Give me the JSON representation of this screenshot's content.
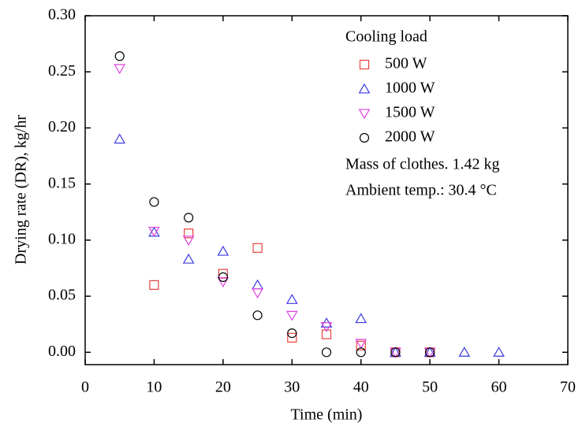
{
  "chart_data": {
    "type": "scatter",
    "x_label": "Time (min)",
    "y_label": "Drying rate (DR), kg/hr",
    "legend_title": "Cooling load",
    "annotations": [
      "Mass of clothes. 1.42 kg",
      "Ambient temp.: 30.4 °C"
    ],
    "legend_position": "upper right",
    "xlim": [
      0,
      70
    ],
    "xticks": [
      0,
      10,
      20,
      30,
      40,
      50,
      60,
      70
    ],
    "ylim": [
      -0.011,
      0.3
    ],
    "yticks": [
      {
        "value": 0,
        "label": "0.00"
      },
      {
        "value": 0.05,
        "label": "0.05"
      },
      {
        "value": 0.1,
        "label": "0.10"
      },
      {
        "value": 0.15,
        "label": "0.15"
      },
      {
        "value": 0.2,
        "label": "0.20"
      },
      {
        "value": 0.25,
        "label": "0.25"
      },
      {
        "value": 0.3,
        "label": "0.30"
      }
    ],
    "series": [
      {
        "name": "500 W",
        "color": "#e8403c",
        "marker": "square",
        "x": [
          10,
          15,
          20,
          25,
          30,
          35,
          40,
          45,
          50
        ],
        "values": [
          0.06,
          0.106,
          0.07,
          0.093,
          0.013,
          0.016,
          0.006,
          0,
          0
        ]
      },
      {
        "name": "1000 W",
        "color": "#3a3ae0",
        "marker": "triangle-up",
        "x": [
          5,
          10,
          15,
          20,
          25,
          30,
          35,
          40,
          45,
          50,
          55,
          60
        ],
        "values": [
          0.19,
          0.107,
          0.083,
          0.09,
          0.06,
          0.047,
          0.026,
          0.03,
          0,
          0,
          0,
          0
        ]
      },
      {
        "name": "1500 W",
        "color": "#e040e0",
        "marker": "triangle-down",
        "x": [
          5,
          10,
          15,
          20,
          25,
          30,
          35,
          40,
          45,
          50
        ],
        "values": [
          0.253,
          0.108,
          0.1,
          0.063,
          0.053,
          0.033,
          0.023,
          0.008,
          0,
          0
        ]
      },
      {
        "name": "2000 W",
        "color": "#000000",
        "marker": "circle",
        "x": [
          5,
          10,
          15,
          20,
          25,
          30,
          35,
          40,
          45,
          50
        ],
        "values": [
          0.264,
          0.134,
          0.12,
          0.067,
          0.033,
          0.017,
          0,
          0,
          0,
          0
        ]
      }
    ]
  }
}
